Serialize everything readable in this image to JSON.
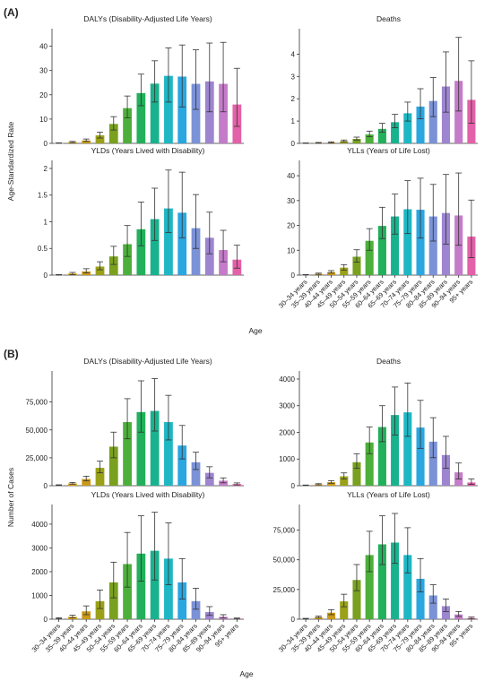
{
  "figure": {
    "panel_a_label": "(A)",
    "panel_b_label": "(B)",
    "panel_a_ylabel": "Age-Standardized Rate",
    "panel_b_ylabel": "Number of Cases",
    "xlabel": "Age"
  },
  "colors": [
    "#c2c2c2",
    "#d4a11e",
    "#c99a17",
    "#9aa119",
    "#79a11f",
    "#4daf3b",
    "#22b05a",
    "#19b28f",
    "#1eb7c3",
    "#2aa6e0",
    "#7b92d6",
    "#9d85cf",
    "#c47bc9",
    "#e361a8"
  ],
  "chart_data": [
    {
      "type": "bar",
      "title": "DALYs (Disability-Adjusted Life Years)",
      "categories": [
        "30–34 years",
        "35–39 years",
        "40–44 years",
        "45–49 years",
        "50–54 years",
        "55–59 years",
        "60–64 years",
        "65–69 years",
        "70–74 years",
        "75–79 years",
        "80–84 years",
        "85–89 years",
        "90–94 years",
        "95+ years"
      ],
      "values": [
        0.1,
        0.5,
        1.2,
        3.3,
        8,
        14.5,
        20.7,
        24.6,
        27.8,
        27.5,
        24.5,
        25.5,
        24.5,
        16
      ],
      "lower": [
        0.05,
        0.3,
        0.8,
        2.2,
        5.5,
        10.5,
        15.5,
        17,
        17,
        15,
        14,
        13,
        13,
        7
      ],
      "upper": [
        0.2,
        0.8,
        1.8,
        4.6,
        11,
        19.5,
        28.5,
        34,
        39.3,
        40.5,
        38.5,
        41.3,
        41.6,
        30.9
      ],
      "ylim": [
        0,
        45
      ],
      "yticks": [
        0,
        10,
        20,
        30,
        40
      ],
      "show_xticks": false
    },
    {
      "type": "bar",
      "title": "Deaths",
      "categories": [
        "30–34 years",
        "35–39 years",
        "40–44 years",
        "45–49 years",
        "50–54 years",
        "55–59 years",
        "60–64 years",
        "65–69 years",
        "70–74 years",
        "75–79 years",
        "80–84 years",
        "85–89 years",
        "90–94 years",
        "95+ years"
      ],
      "values": [
        0.01,
        0.02,
        0.04,
        0.1,
        0.2,
        0.4,
        0.65,
        0.95,
        1.35,
        1.65,
        1.9,
        2.55,
        2.8,
        1.95
      ],
      "lower": [
        0,
        0.01,
        0.02,
        0.07,
        0.15,
        0.3,
        0.5,
        0.7,
        1,
        1.1,
        1.2,
        1.4,
        1.45,
        0.9
      ],
      "upper": [
        0.02,
        0.04,
        0.07,
        0.15,
        0.28,
        0.55,
        0.9,
        1.3,
        1.85,
        2.45,
        2.95,
        4.1,
        4.75,
        3.7
      ],
      "ylim": [
        0,
        4.9
      ],
      "yticks": [
        0,
        1,
        2,
        3,
        4
      ],
      "show_xticks": false
    },
    {
      "type": "bar",
      "title": "YLDs (Years Lived with Disability)",
      "categories": [
        "30–34 years",
        "35–39 years",
        "40–44 years",
        "45–49 years",
        "50–54 years",
        "55–59 years",
        "60–64 years",
        "65–69 years",
        "70–74 years",
        "75–79 years",
        "80–84 years",
        "85–89 years",
        "90–94 years",
        "95+ years"
      ],
      "values": [
        0.005,
        0.03,
        0.07,
        0.16,
        0.35,
        0.58,
        0.86,
        1.05,
        1.25,
        1.17,
        0.88,
        0.7,
        0.47,
        0.29
      ],
      "lower": [
        0,
        0.01,
        0.04,
        0.1,
        0.2,
        0.35,
        0.55,
        0.65,
        0.8,
        0.7,
        0.5,
        0.4,
        0.25,
        0.13
      ],
      "upper": [
        0.01,
        0.05,
        0.12,
        0.25,
        0.54,
        0.93,
        1.37,
        1.63,
        1.97,
        1.93,
        1.51,
        1.18,
        0.84,
        0.56
      ],
      "ylim": [
        0,
        2.05
      ],
      "yticks": [
        0,
        0.5,
        1,
        1.5,
        2
      ],
      "show_xticks": false
    },
    {
      "type": "bar",
      "title": "YLLs (Years of Life Lost)",
      "categories": [
        "30–34 years",
        "35–39 years",
        "40–44 years",
        "45–49 years",
        "50–54 years",
        "55–59 years",
        "60–64 years",
        "65–69 years",
        "70–74 years",
        "75–79 years",
        "80–84 years",
        "85–89 years",
        "90–94 years",
        "95+ years"
      ],
      "values": [
        0.1,
        0.5,
        1.2,
        3,
        7.4,
        13.8,
        19.8,
        23.6,
        26.5,
        26.3,
        23.6,
        25,
        24,
        15.5
      ],
      "lower": [
        0.05,
        0.3,
        0.8,
        2,
        5.2,
        10,
        14.7,
        16.5,
        16.7,
        14.9,
        13.7,
        12.5,
        12,
        7
      ],
      "upper": [
        0.2,
        0.8,
        1.8,
        4.2,
        10.2,
        18.7,
        27.3,
        32.6,
        38,
        39,
        36.5,
        40.5,
        41.1,
        30.2
      ],
      "ylim": [
        0,
        44
      ],
      "yticks": [
        0,
        10,
        20,
        30,
        40
      ],
      "show_xticks": true
    },
    {
      "type": "bar",
      "title": "DALYs (Disability-Adjusted Life Years)",
      "categories": [
        "30–34 years",
        "35–39 years",
        "40–44 years",
        "45–49 years",
        "50–54 years",
        "55–59 years",
        "60–64 years",
        "65–69 years",
        "70–74 years",
        "75–79 years",
        "80–84 years",
        "85–89 years",
        "90–94 years",
        "95+ years"
      ],
      "values": [
        500,
        2000,
        6000,
        16000,
        35000,
        57000,
        66000,
        67000,
        57000,
        36000,
        21000,
        11500,
        4500,
        1500
      ],
      "lower": [
        300,
        1400,
        4300,
        11500,
        25000,
        42000,
        48000,
        49000,
        41000,
        24000,
        14500,
        7000,
        2600,
        700
      ],
      "upper": [
        800,
        2900,
        8500,
        22000,
        48000,
        78000,
        94000,
        96000,
        81000,
        54000,
        30000,
        17000,
        7000,
        2500
      ],
      "ylim": [
        0,
        98000
      ],
      "yticks": [
        0,
        25000,
        50000,
        75000
      ],
      "ytick_labels": [
        "0",
        "25,000",
        "50,000",
        "75,000"
      ],
      "show_xticks": false
    },
    {
      "type": "bar",
      "title": "Deaths",
      "categories": [
        "30–34 years",
        "35–39 years",
        "40–44 years",
        "45–49 years",
        "50–54 years",
        "55–59 years",
        "60–64 years",
        "65–69 years",
        "70–74 years",
        "75–79 years",
        "80–84 years",
        "85–89 years",
        "90–94 years",
        "95+ years"
      ],
      "values": [
        15,
        50,
        130,
        350,
        880,
        1620,
        2200,
        2650,
        2750,
        2180,
        1650,
        1150,
        500,
        120
      ],
      "lower": [
        8,
        30,
        90,
        250,
        650,
        1200,
        1650,
        1900,
        1850,
        1400,
        1050,
        650,
        250,
        50
      ],
      "upper": [
        25,
        75,
        190,
        480,
        1200,
        2200,
        3000,
        3700,
        3850,
        3200,
        2550,
        1850,
        850,
        250
      ],
      "ylim": [
        0,
        4100
      ],
      "yticks": [
        0,
        1000,
        2000,
        3000,
        4000
      ],
      "show_xticks": false
    },
    {
      "type": "bar",
      "title": "YLDs (Years Lived with Disability)",
      "categories": [
        "30–34 years",
        "35–39 years",
        "40–44 years",
        "45–49 years",
        "50–54 years",
        "55–59 years",
        "60–64 years",
        "65–69 years",
        "70–74 years",
        "75–79 years",
        "80–84 years",
        "85–89 years",
        "90–94 years",
        "95+ years"
      ],
      "values": [
        30,
        100,
        330,
        760,
        1550,
        2320,
        2760,
        2880,
        2550,
        1550,
        760,
        300,
        100,
        25
      ],
      "lower": [
        15,
        55,
        190,
        450,
        900,
        1350,
        1600,
        1650,
        1450,
        850,
        420,
        160,
        50,
        12
      ],
      "upper": [
        60,
        170,
        560,
        1230,
        2400,
        3650,
        4350,
        4500,
        4050,
        2550,
        1300,
        530,
        190,
        50
      ],
      "ylim": [
        0,
        4600
      ],
      "yticks": [
        0,
        1000,
        2000,
        3000,
        4000
      ],
      "show_xticks": true
    },
    {
      "type": "bar",
      "title": "YLLs (Years of Life Lost)",
      "categories": [
        "30–34 years",
        "35–39 years",
        "40–44 years",
        "45–49 years",
        "50–54 years",
        "55–59 years",
        "60–64 years",
        "65–69 years",
        "70–74 years",
        "75–79 years",
        "80–84 years",
        "85–89 years",
        "90–94 years",
        "95+ years"
      ],
      "values": [
        400,
        1800,
        5500,
        15000,
        33000,
        54000,
        63000,
        64500,
        54000,
        34000,
        20000,
        11000,
        4000,
        1000
      ],
      "lower": [
        250,
        1200,
        3800,
        10500,
        24000,
        40000,
        46000,
        47000,
        39000,
        23000,
        13500,
        6500,
        2300,
        400
      ],
      "upper": [
        700,
        2600,
        8000,
        21000,
        46000,
        74000,
        87000,
        89000,
        77000,
        51000,
        29000,
        17000,
        6500,
        1800
      ],
      "ylim": [
        0,
        92000
      ],
      "yticks": [
        0,
        25000,
        50000,
        75000
      ],
      "ytick_labels": [
        "0",
        "25,000",
        "50,000",
        "75,000"
      ],
      "show_xticks": true
    }
  ]
}
